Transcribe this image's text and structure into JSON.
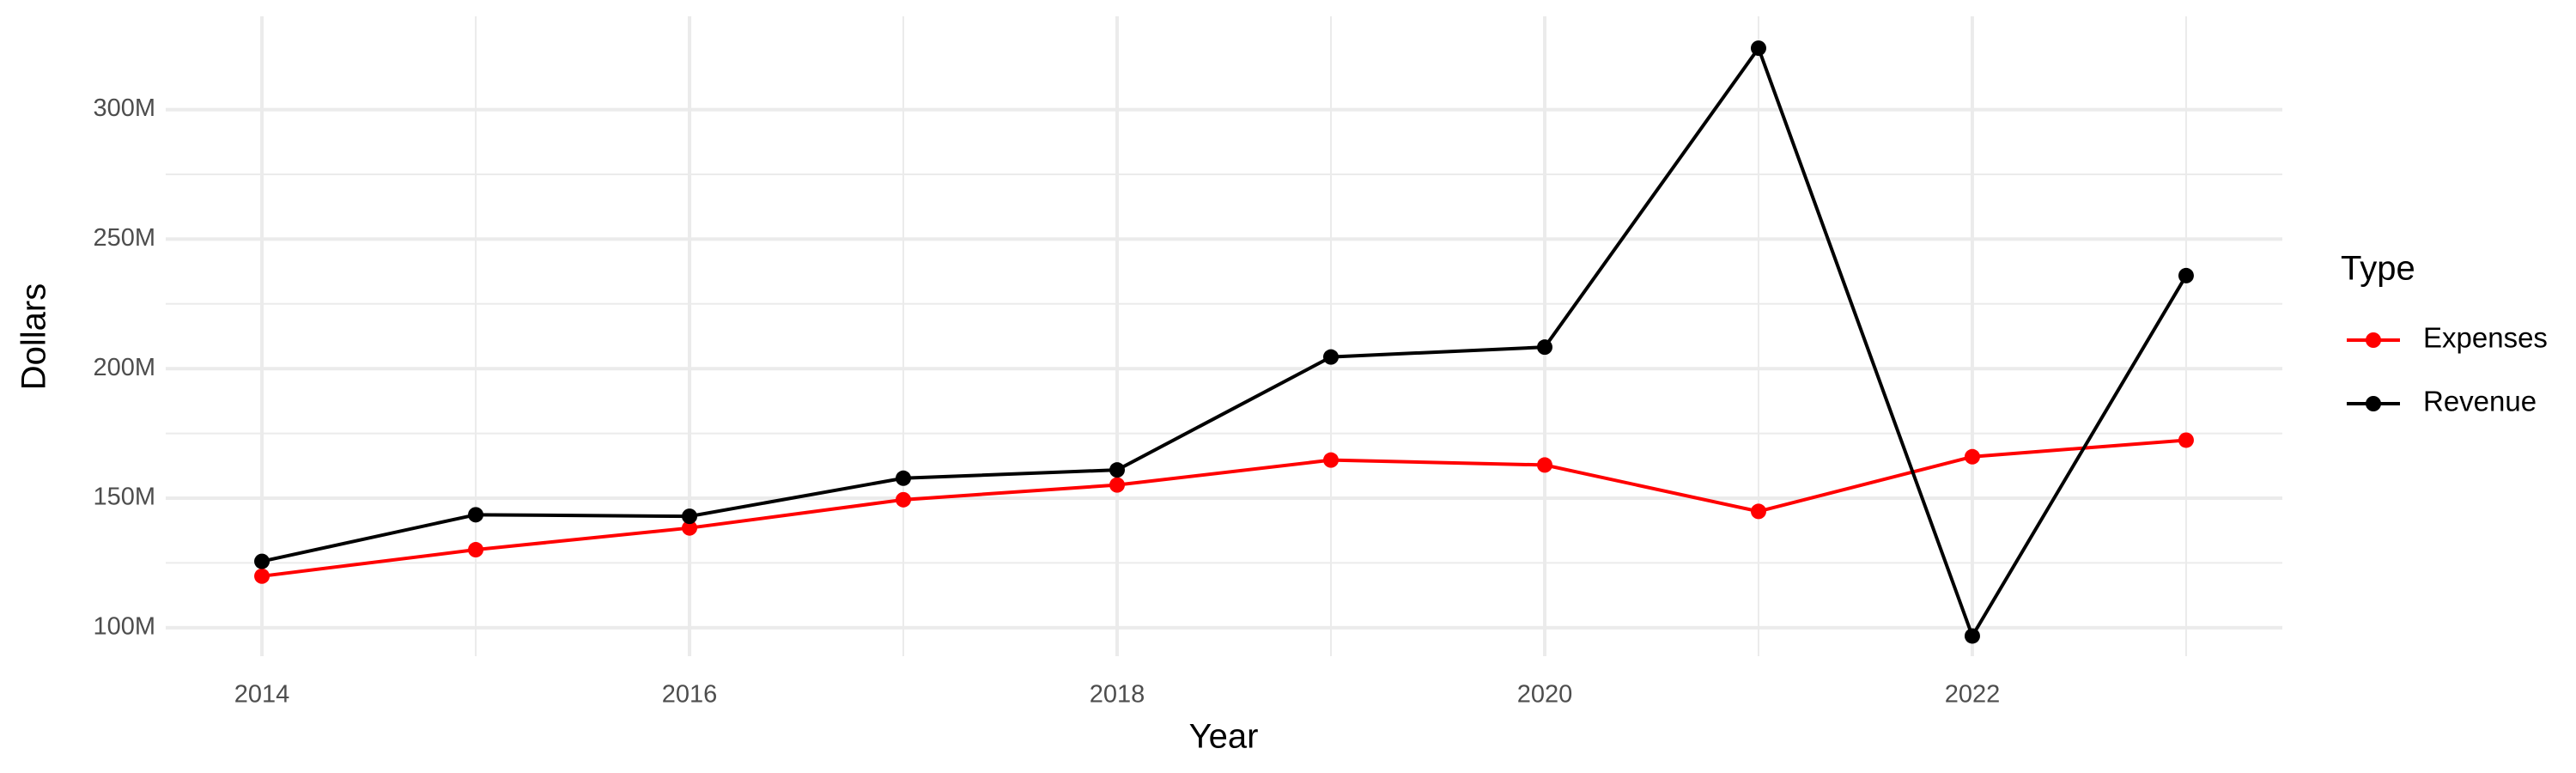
{
  "chart_data": {
    "type": "line",
    "x_label": "Year",
    "y_label": "Dollars",
    "x": [
      2014,
      2015,
      2016,
      2017,
      2018,
      2019,
      2020,
      2021,
      2022,
      2023
    ],
    "series": [
      {
        "name": "Expenses",
        "color": "#ff0000",
        "values": [
          119900000,
          130100000,
          138500000,
          149400000,
          155100000,
          164700000,
          162800000,
          144900000,
          166000000,
          172400000
        ]
      },
      {
        "name": "Revenue",
        "color": "#000000",
        "values": [
          125600000,
          143600000,
          143000000,
          157700000,
          160900000,
          204500000,
          208300000,
          323700000,
          96800000,
          235900000
        ]
      }
    ],
    "xlim": [
      2013.55,
      2023.45
    ],
    "xticks": [
      2014,
      2016,
      2018,
      2020,
      2022
    ],
    "minor_xticks": [
      2015,
      2017,
      2019,
      2021,
      2023
    ],
    "ylim": [
      89000000,
      336000000
    ],
    "yticks": [
      {
        "value": 100000000,
        "label": "100M"
      },
      {
        "value": 150000000,
        "label": "150M"
      },
      {
        "value": 200000000,
        "label": "200M"
      },
      {
        "value": 250000000,
        "label": "250M"
      },
      {
        "value": 300000000,
        "label": "300M"
      }
    ],
    "minor_yticks": [
      125000000,
      175000000,
      225000000,
      275000000
    ],
    "grid": true,
    "legend_title": "Type",
    "legend_position": "right"
  }
}
